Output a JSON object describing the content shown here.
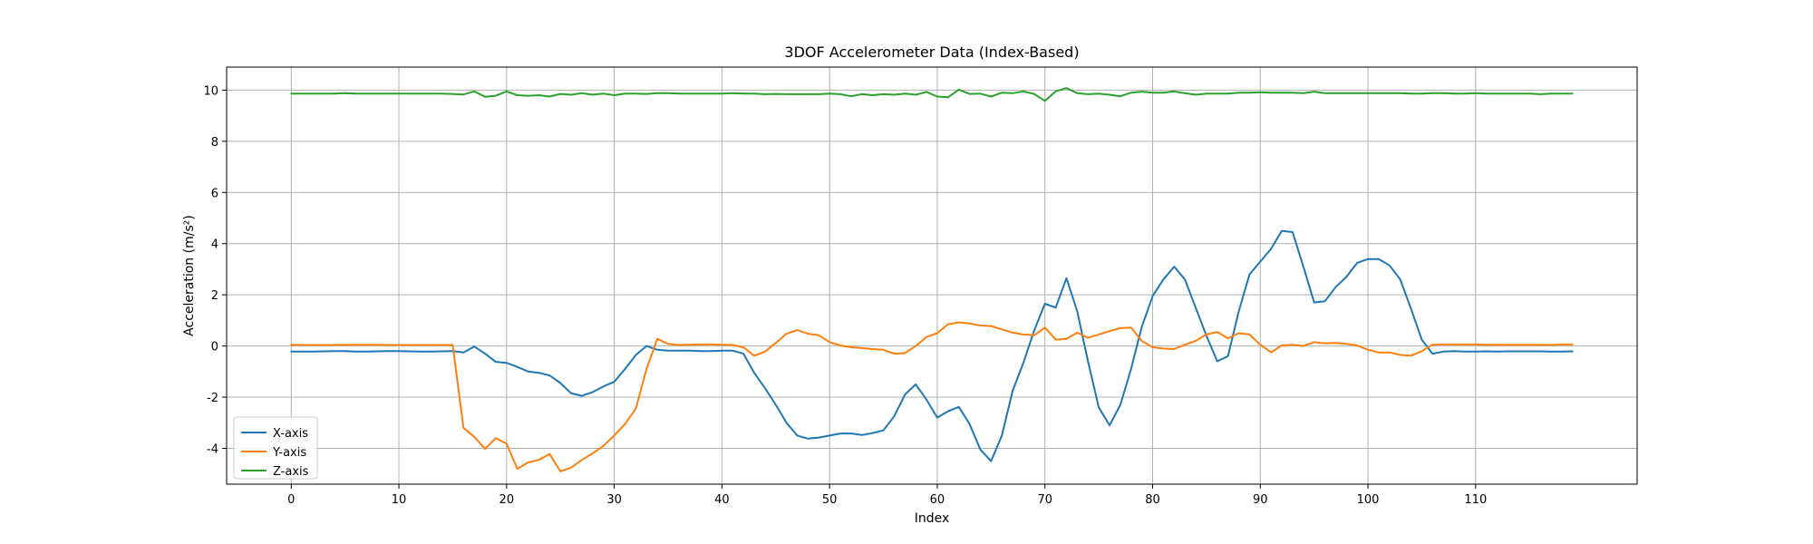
{
  "chart_data": {
    "type": "line",
    "title": "3DOF Accelerometer Data (Index-Based)",
    "xlabel": "Index",
    "ylabel": "Acceleration (m/s²)",
    "xlim": [
      -6,
      125
    ],
    "ylim": [
      -5.4,
      10.9
    ],
    "xticks": [
      0,
      10,
      20,
      30,
      40,
      50,
      60,
      70,
      80,
      90,
      100,
      110
    ],
    "yticks": [
      -4,
      -2,
      0,
      2,
      4,
      6,
      8,
      10
    ],
    "grid": true,
    "legend": "lower-left",
    "x": [
      0,
      1,
      2,
      3,
      4,
      5,
      6,
      7,
      8,
      9,
      10,
      11,
      12,
      13,
      14,
      15,
      16,
      17,
      18,
      19,
      20,
      21,
      22,
      23,
      24,
      25,
      26,
      27,
      28,
      29,
      30,
      31,
      32,
      33,
      34,
      35,
      36,
      37,
      38,
      39,
      40,
      41,
      42,
      43,
      44,
      45,
      46,
      47,
      48,
      49,
      50,
      51,
      52,
      53,
      54,
      55,
      56,
      57,
      58,
      59,
      60,
      61,
      62,
      63,
      64,
      65,
      66,
      67,
      68,
      69,
      70,
      71,
      72,
      73,
      74,
      75,
      76,
      77,
      78,
      79,
      80,
      81,
      82,
      83,
      84,
      85,
      86,
      87,
      88,
      89,
      90,
      91,
      92,
      93,
      94,
      95,
      96,
      97,
      98,
      99,
      100,
      101,
      102,
      103,
      104,
      105,
      106,
      107,
      108,
      109,
      110,
      111,
      112,
      113,
      114,
      115,
      116,
      117,
      118,
      119
    ],
    "series": [
      {
        "name": "X-axis",
        "color": "#1f77b4",
        "values": [
          -0.22,
          -0.22,
          -0.22,
          -0.21,
          -0.2,
          -0.2,
          -0.22,
          -0.22,
          -0.21,
          -0.2,
          -0.2,
          -0.21,
          -0.22,
          -0.22,
          -0.21,
          -0.2,
          -0.25,
          -0.02,
          -0.3,
          -0.62,
          -0.66,
          -0.82,
          -1.0,
          -1.05,
          -1.15,
          -1.45,
          -1.85,
          -1.95,
          -1.8,
          -1.58,
          -1.4,
          -0.9,
          -0.35,
          0.0,
          -0.15,
          -0.18,
          -0.18,
          -0.18,
          -0.2,
          -0.2,
          -0.18,
          -0.18,
          -0.3,
          -1.05,
          -1.65,
          -2.3,
          -3.0,
          -3.5,
          -3.62,
          -3.58,
          -3.5,
          -3.42,
          -3.42,
          -3.48,
          -3.4,
          -3.3,
          -2.75,
          -1.9,
          -1.5,
          -2.1,
          -2.8,
          -2.55,
          -2.38,
          -3.05,
          -4.05,
          -4.5,
          -3.5,
          -1.75,
          -0.65,
          0.6,
          1.65,
          1.5,
          2.65,
          1.35,
          -0.6,
          -2.4,
          -3.1,
          -2.3,
          -0.9,
          0.75,
          1.95,
          2.6,
          3.1,
          2.6,
          1.5,
          0.4,
          -0.6,
          -0.4,
          1.35,
          2.8,
          3.3,
          3.8,
          4.5,
          4.45,
          3.1,
          1.7,
          1.75,
          2.3,
          2.7,
          3.25,
          3.4,
          3.4,
          3.15,
          2.6,
          1.45,
          0.25,
          -0.3,
          -0.22,
          -0.2,
          -0.22,
          -0.22,
          -0.21,
          -0.22,
          -0.21,
          -0.21,
          -0.21,
          -0.21,
          -0.22,
          -0.22,
          -0.21
        ]
      },
      {
        "name": "Y-axis",
        "color": "#ff7f0e",
        "values": [
          0.05,
          0.04,
          0.04,
          0.04,
          0.04,
          0.05,
          0.05,
          0.05,
          0.05,
          0.04,
          0.04,
          0.04,
          0.04,
          0.04,
          0.04,
          0.04,
          -3.2,
          -3.55,
          -4.02,
          -3.6,
          -3.82,
          -4.8,
          -4.55,
          -4.45,
          -4.22,
          -4.9,
          -4.75,
          -4.45,
          -4.2,
          -3.9,
          -3.5,
          -3.05,
          -2.45,
          -0.9,
          0.28,
          0.08,
          0.04,
          0.05,
          0.06,
          0.06,
          0.05,
          0.04,
          -0.05,
          -0.38,
          -0.22,
          0.12,
          0.48,
          0.62,
          0.48,
          0.42,
          0.15,
          0.02,
          -0.05,
          -0.08,
          -0.12,
          -0.15,
          -0.3,
          -0.28,
          0.0,
          0.35,
          0.5,
          0.85,
          0.92,
          0.88,
          0.8,
          0.78,
          0.65,
          0.52,
          0.45,
          0.42,
          0.72,
          0.25,
          0.28,
          0.52,
          0.32,
          0.45,
          0.58,
          0.7,
          0.72,
          0.2,
          -0.05,
          -0.1,
          -0.12,
          0.05,
          0.2,
          0.45,
          0.55,
          0.3,
          0.5,
          0.45,
          0.05,
          -0.25,
          0.02,
          0.05,
          0.0,
          0.15,
          0.1,
          0.12,
          0.08,
          0.02,
          -0.15,
          -0.25,
          -0.25,
          -0.35,
          -0.38,
          -0.2,
          0.05,
          0.06,
          0.06,
          0.06,
          0.06,
          0.05,
          0.05,
          0.05,
          0.05,
          0.05,
          0.05,
          0.04,
          0.06,
          0.06
        ]
      },
      {
        "name": "Z-axis",
        "color": "#2ca02c",
        "values": [
          9.86,
          9.86,
          9.86,
          9.86,
          9.86,
          9.88,
          9.86,
          9.86,
          9.86,
          9.86,
          9.86,
          9.86,
          9.86,
          9.86,
          9.86,
          9.85,
          9.83,
          9.95,
          9.74,
          9.78,
          9.95,
          9.8,
          9.78,
          9.8,
          9.75,
          9.85,
          9.82,
          9.88,
          9.82,
          9.86,
          9.8,
          9.86,
          9.86,
          9.85,
          9.88,
          9.88,
          9.86,
          9.86,
          9.86,
          9.86,
          9.86,
          9.88,
          9.86,
          9.86,
          9.84,
          9.85,
          9.84,
          9.84,
          9.84,
          9.84,
          9.86,
          9.84,
          9.76,
          9.84,
          9.8,
          9.84,
          9.82,
          9.86,
          9.82,
          9.93,
          9.75,
          9.72,
          10.02,
          9.85,
          9.86,
          9.75,
          9.9,
          9.88,
          9.95,
          9.85,
          9.58,
          9.95,
          10.08,
          9.88,
          9.84,
          9.86,
          9.82,
          9.76,
          9.9,
          9.94,
          9.9,
          9.9,
          9.95,
          9.88,
          9.82,
          9.86,
          9.86,
          9.86,
          9.9,
          9.9,
          9.92,
          9.9,
          9.9,
          9.9,
          9.88,
          9.94,
          9.88,
          9.88,
          9.88,
          9.88,
          9.88,
          9.88,
          9.88,
          9.88,
          9.86,
          9.86,
          9.88,
          9.88,
          9.86,
          9.86,
          9.88,
          9.86,
          9.86,
          9.86,
          9.86,
          9.86,
          9.84,
          9.86,
          9.86,
          9.86
        ]
      }
    ]
  }
}
